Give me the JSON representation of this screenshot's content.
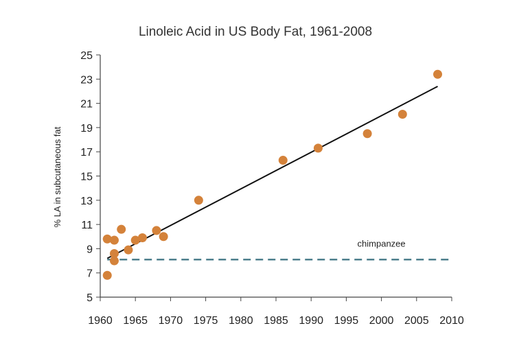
{
  "chart_data": {
    "type": "scatter",
    "title": "Linoleic Acid in US Body Fat, 1961-2008",
    "xlabel": "",
    "ylabel": "% LA in subcutaneous fat",
    "xlim": [
      1960,
      2010
    ],
    "ylim": [
      5,
      25
    ],
    "x_ticks": [
      1960,
      1965,
      1970,
      1975,
      1980,
      1985,
      1990,
      1995,
      2000,
      2005,
      2010
    ],
    "y_ticks": [
      5,
      7,
      9,
      11,
      13,
      15,
      17,
      19,
      21,
      23,
      25
    ],
    "grid": false,
    "legend": "none",
    "points": [
      {
        "x": 1961,
        "y": 6.8
      },
      {
        "x": 1961,
        "y": 9.8
      },
      {
        "x": 1962,
        "y": 9.7
      },
      {
        "x": 1962,
        "y": 8.6
      },
      {
        "x": 1962,
        "y": 8.0
      },
      {
        "x": 1963,
        "y": 10.6
      },
      {
        "x": 1964,
        "y": 8.9
      },
      {
        "x": 1965,
        "y": 9.7
      },
      {
        "x": 1966,
        "y": 9.9
      },
      {
        "x": 1968,
        "y": 10.5
      },
      {
        "x": 1969,
        "y": 10.0
      },
      {
        "x": 1974,
        "y": 13.0
      },
      {
        "x": 1986,
        "y": 16.3
      },
      {
        "x": 1991,
        "y": 17.3
      },
      {
        "x": 1998,
        "y": 18.5
      },
      {
        "x": 2003,
        "y": 20.1
      },
      {
        "x": 2008,
        "y": 23.4
      }
    ],
    "trendline": {
      "x": [
        1961,
        2008
      ],
      "y": [
        8.2,
        22.4
      ]
    },
    "reference_line": {
      "label": "chimpanzee",
      "y": 8.1,
      "x_range": [
        1961,
        2010
      ]
    },
    "colors": {
      "points": "#d4823a",
      "trendline": "#111111",
      "reference_line": "#4d7f8c",
      "axis": "#444444"
    }
  }
}
